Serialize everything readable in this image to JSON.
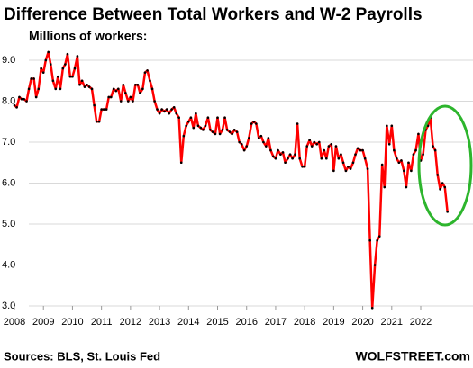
{
  "chart_data": {
    "type": "line",
    "title": "Difference Between Total Workers and W-2 Payrolls",
    "subtitle": "Millions of workers:",
    "source": "Sources: BLS, St. Louis Fed",
    "brand": "WOLFSTREET.com",
    "x": [
      2008,
      2008.08,
      2008.17,
      2008.25,
      2008.33,
      2008.42,
      2008.5,
      2008.58,
      2008.67,
      2008.75,
      2008.83,
      2008.92,
      2009,
      2009.08,
      2009.17,
      2009.25,
      2009.33,
      2009.42,
      2009.5,
      2009.58,
      2009.67,
      2009.75,
      2009.83,
      2009.92,
      2010,
      2010.08,
      2010.17,
      2010.25,
      2010.33,
      2010.42,
      2010.5,
      2010.58,
      2010.67,
      2010.75,
      2010.83,
      2010.92,
      2011,
      2011.08,
      2011.17,
      2011.25,
      2011.33,
      2011.42,
      2011.5,
      2011.58,
      2011.67,
      2011.75,
      2011.83,
      2011.92,
      2012,
      2012.08,
      2012.17,
      2012.25,
      2012.33,
      2012.42,
      2012.5,
      2012.58,
      2012.67,
      2012.75,
      2012.83,
      2012.92,
      2013,
      2013.08,
      2013.17,
      2013.25,
      2013.33,
      2013.42,
      2013.5,
      2013.58,
      2013.67,
      2013.75,
      2013.83,
      2013.92,
      2014,
      2014.08,
      2014.17,
      2014.25,
      2014.33,
      2014.42,
      2014.5,
      2014.58,
      2014.67,
      2014.75,
      2014.83,
      2014.92,
      2015,
      2015.08,
      2015.17,
      2015.25,
      2015.33,
      2015.42,
      2015.5,
      2015.58,
      2015.67,
      2015.75,
      2015.83,
      2015.92,
      2016,
      2016.08,
      2016.17,
      2016.25,
      2016.33,
      2016.42,
      2016.5,
      2016.58,
      2016.67,
      2016.75,
      2016.83,
      2016.92,
      2017,
      2017.08,
      2017.17,
      2017.25,
      2017.33,
      2017.42,
      2017.5,
      2017.58,
      2017.67,
      2017.75,
      2017.83,
      2017.92,
      2018,
      2018.08,
      2018.17,
      2018.25,
      2018.33,
      2018.42,
      2018.5,
      2018.58,
      2018.67,
      2018.75,
      2018.83,
      2018.92,
      2019,
      2019.08,
      2019.17,
      2019.25,
      2019.33,
      2019.42,
      2019.5,
      2019.58,
      2019.67,
      2019.75,
      2019.83,
      2019.92,
      2020,
      2020.08,
      2020.17,
      2020.25,
      2020.33,
      2020.42,
      2020.5,
      2020.58,
      2020.67,
      2020.75,
      2020.83,
      2020.92,
      2021,
      2021.08,
      2021.17,
      2021.25,
      2021.33,
      2021.42,
      2021.5,
      2021.58,
      2021.67,
      2021.75,
      2021.83,
      2021.92,
      2022,
      2022.08,
      2022.17,
      2022.25,
      2022.33,
      2022.42,
      2022.5,
      2022.58,
      2022.67,
      2022.75,
      2022.83,
      2022.92
    ],
    "series": [
      {
        "name": "Difference",
        "color": "#ff0000",
        "marker_color": "#000000",
        "values": [
          7.9,
          7.85,
          8.1,
          8.05,
          8.05,
          8.0,
          8.3,
          8.55,
          8.55,
          8.1,
          8.3,
          8.8,
          8.7,
          9.0,
          9.2,
          8.9,
          8.5,
          8.3,
          8.6,
          8.3,
          8.8,
          8.9,
          9.15,
          8.6,
          8.6,
          8.8,
          9.1,
          8.4,
          8.5,
          8.35,
          8.4,
          8.35,
          8.3,
          7.9,
          7.5,
          7.5,
          7.8,
          7.8,
          7.8,
          8.1,
          8.1,
          8.3,
          8.25,
          8.3,
          8.0,
          8.4,
          8.2,
          8.0,
          8.1,
          8.0,
          8.4,
          8.4,
          8.2,
          8.3,
          8.7,
          8.75,
          8.5,
          8.3,
          8.0,
          7.8,
          7.7,
          7.8,
          7.75,
          7.8,
          7.7,
          7.8,
          7.85,
          7.7,
          7.6,
          6.5,
          7.15,
          7.4,
          7.5,
          7.6,
          7.35,
          7.7,
          7.4,
          7.35,
          7.3,
          7.4,
          7.6,
          7.3,
          7.25,
          7.2,
          7.6,
          7.2,
          7.3,
          7.6,
          7.3,
          7.25,
          7.2,
          7.3,
          7.25,
          7.0,
          6.95,
          6.8,
          6.9,
          7.1,
          7.45,
          7.5,
          7.45,
          7.1,
          7.15,
          7.0,
          6.9,
          7.1,
          6.8,
          6.65,
          6.6,
          6.8,
          6.7,
          6.75,
          6.5,
          6.6,
          6.7,
          6.6,
          6.7,
          7.45,
          6.6,
          6.4,
          6.4,
          6.9,
          7.05,
          6.9,
          7.0,
          6.95,
          7.0,
          6.6,
          6.8,
          6.6,
          6.9,
          6.95,
          6.3,
          6.9,
          6.6,
          6.7,
          6.5,
          6.3,
          6.4,
          6.35,
          6.5,
          6.7,
          6.85,
          6.8,
          6.8,
          6.6,
          6.35,
          4.6,
          2.95,
          4.0,
          4.6,
          4.7,
          6.45,
          5.9,
          7.4,
          6.95,
          7.4,
          6.8,
          6.6,
          6.5,
          6.55,
          6.3,
          5.9,
          6.5,
          6.3,
          6.7,
          6.8,
          7.2,
          6.55,
          6.7,
          7.3,
          7.4,
          7.6,
          6.9,
          6.8,
          6.2,
          5.85,
          6.0,
          5.9,
          5.3
        ]
      }
    ],
    "xlim": [
      2008,
      2023.8
    ],
    "xticks": [
      2008,
      2009,
      2010,
      2011,
      2012,
      2013,
      2014,
      2015,
      2016,
      2017,
      2018,
      2019,
      2020,
      2021,
      2022
    ],
    "ylim": [
      3,
      9.4
    ],
    "yticks": [
      {
        "value": 3,
        "label": "3.0"
      },
      {
        "value": 4,
        "label": "4.0"
      },
      {
        "value": 5,
        "label": "5.0"
      },
      {
        "value": 6,
        "label": "6.0"
      },
      {
        "value": 7,
        "label": "7.0"
      },
      {
        "value": 8,
        "label": "8.0"
      },
      {
        "value": 9,
        "label": "9.0"
      }
    ],
    "grid": true
  }
}
